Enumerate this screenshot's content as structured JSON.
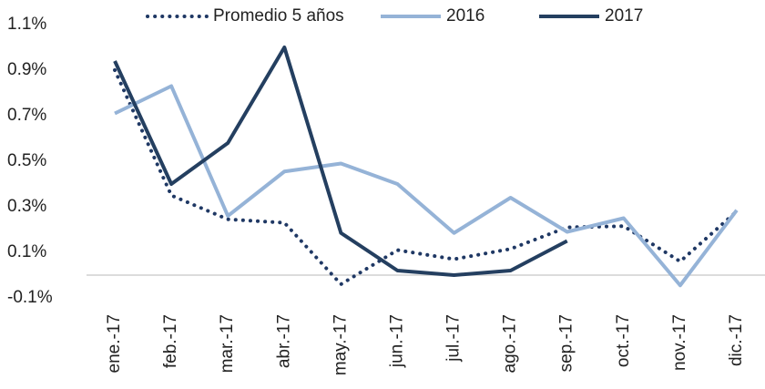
{
  "chart_data": {
    "type": "line",
    "categories": [
      "ene.-17",
      "feb.-17",
      "mar.-17",
      "abr.-17",
      "may.-17",
      "jun.-17",
      "jul.-17",
      "ago.-17",
      "sep.-17",
      "oct.-17",
      "nov.-17",
      "dic.-17"
    ],
    "series": [
      {
        "name": "Promedio 5 años",
        "color": "#1f3864",
        "dash": "dotted",
        "values": [
          0.9,
          0.35,
          0.245,
          0.23,
          -0.04,
          0.11,
          0.07,
          0.115,
          0.21,
          0.215,
          0.06,
          0.28
        ]
      },
      {
        "name": "2016",
        "color": "#95b3d7",
        "values": [
          0.71,
          0.83,
          0.26,
          0.455,
          0.49,
          0.4,
          0.185,
          0.34,
          0.19,
          0.25,
          -0.045,
          0.285
        ]
      },
      {
        "name": "2017",
        "color": "#243f60",
        "values": [
          0.94,
          0.4,
          0.58,
          1.0,
          0.185,
          0.02,
          0.0,
          0.02,
          0.15,
          null,
          null,
          null
        ]
      }
    ],
    "ylim": [
      -0.1,
      1.1
    ],
    "yticks": [
      {
        "value": 1.1,
        "label": "1.1%"
      },
      {
        "value": 0.9,
        "label": "0.9%"
      },
      {
        "value": 0.7,
        "label": "0.7%"
      },
      {
        "value": 0.5,
        "label": "0.5%"
      },
      {
        "value": 0.3,
        "label": "0.3%"
      },
      {
        "value": 0.1,
        "label": "0.1%"
      },
      {
        "value": -0.1,
        "label": "-0.1%"
      }
    ],
    "grid": false,
    "legend": "top"
  }
}
